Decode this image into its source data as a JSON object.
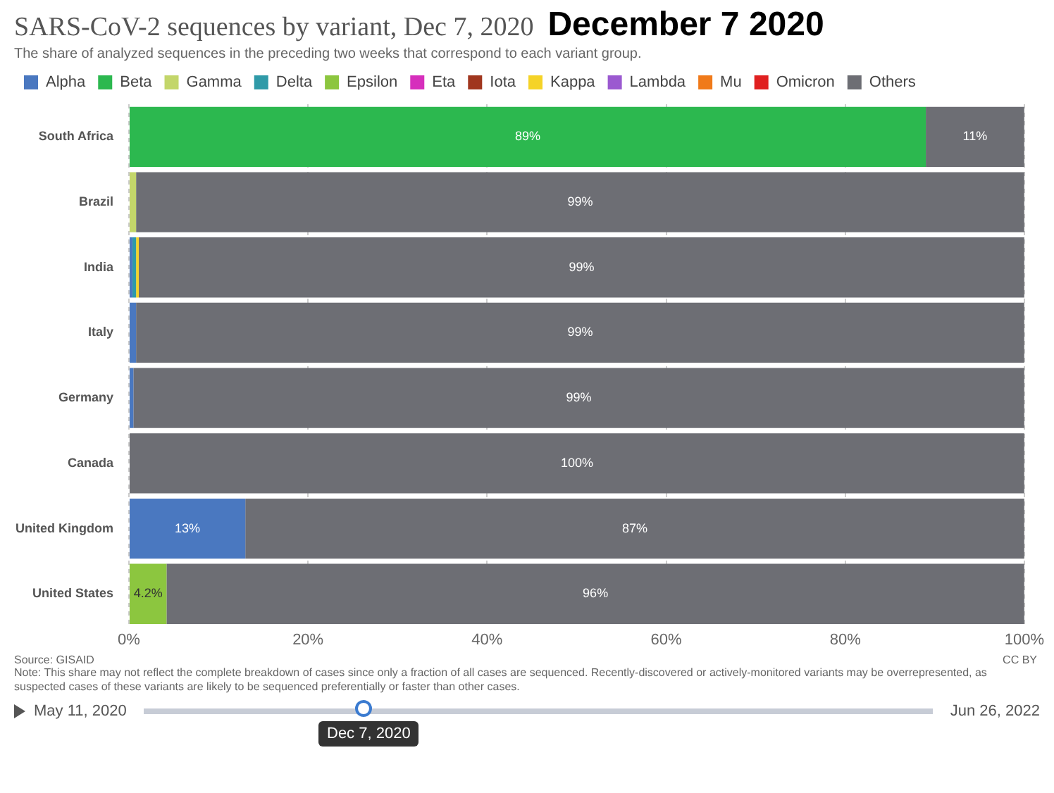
{
  "chart_data": {
    "type": "bar",
    "orientation": "horizontal",
    "stacked": true,
    "title": "SARS-CoV-2 sequences by variant, Dec 7, 2020",
    "subtitle": "The share of analyzed sequences in the preceding two weeks that correspond to each variant group.",
    "categories": [
      "South Africa",
      "Brazil",
      "India",
      "Italy",
      "Germany",
      "Canada",
      "United Kingdom",
      "United States"
    ],
    "series": [
      {
        "name": "Alpha",
        "color": "#4a78c0",
        "values": [
          0,
          0,
          0.4,
          0.8,
          0.5,
          0,
          13,
          0
        ],
        "value_labels": [
          null,
          null,
          null,
          null,
          null,
          null,
          "13%",
          null
        ]
      },
      {
        "name": "Beta",
        "color": "#2cb84f",
        "values": [
          89,
          0,
          0,
          0,
          0,
          0,
          0,
          0
        ],
        "value_labels": [
          "89%",
          null,
          null,
          null,
          null,
          null,
          null,
          null
        ]
      },
      {
        "name": "Gamma",
        "color": "#c3d66a",
        "values": [
          0,
          0.8,
          0,
          0,
          0,
          0,
          0,
          0
        ]
      },
      {
        "name": "Delta",
        "color": "#2f9aa8",
        "values": [
          0,
          0,
          0.4,
          0,
          0,
          0,
          0,
          0
        ]
      },
      {
        "name": "Epsilon",
        "color": "#8cc63f",
        "values": [
          0,
          0,
          0,
          0,
          0,
          0,
          0,
          4.2
        ],
        "value_labels": [
          null,
          null,
          null,
          null,
          null,
          null,
          null,
          "4.2%"
        ]
      },
      {
        "name": "Eta",
        "color": "#d62fbc",
        "values": [
          0,
          0,
          0,
          0,
          0,
          0,
          0,
          0
        ]
      },
      {
        "name": "Iota",
        "color": "#a0361e",
        "values": [
          0,
          0,
          0,
          0,
          0,
          0,
          0,
          0
        ]
      },
      {
        "name": "Kappa",
        "color": "#f5d327",
        "values": [
          0,
          0,
          0.3,
          0,
          0,
          0,
          0,
          0
        ]
      },
      {
        "name": "Lambda",
        "color": "#9b59d0",
        "values": [
          0,
          0,
          0,
          0,
          0,
          0,
          0,
          0
        ]
      },
      {
        "name": "Mu",
        "color": "#f07a1a",
        "values": [
          0,
          0,
          0,
          0,
          0,
          0,
          0,
          0
        ]
      },
      {
        "name": "Omicron",
        "color": "#e02020",
        "values": [
          0,
          0,
          0,
          0,
          0,
          0,
          0,
          0
        ]
      },
      {
        "name": "Others",
        "color": "#6d6e74",
        "values": [
          11,
          99.2,
          98.9,
          99.2,
          99.5,
          100,
          87,
          95.8
        ],
        "value_labels": [
          "11%",
          "99%",
          "99%",
          "99%",
          "99%",
          "100%",
          "87%",
          "96%"
        ]
      }
    ],
    "xlim": [
      0,
      100
    ],
    "xticks": [
      {
        "value": 0,
        "label": "0%"
      },
      {
        "value": 20,
        "label": "20%"
      },
      {
        "value": 40,
        "label": "40%"
      },
      {
        "value": 60,
        "label": "60%"
      },
      {
        "value": 80,
        "label": "80%"
      },
      {
        "value": 100,
        "label": "100%"
      }
    ],
    "grid": "x",
    "legend": "top left",
    "annotations": [
      "December 7 2020",
      "Source: GISAID",
      "Note: This share may not reflect the complete breakdown of cases since only a fraction of all cases are sequenced. Recently-discovered or actively-monitored variants may be overrepresented, as suspected cases of these variants are likely to be sequenced preferentially or faster than other cases.",
      "CC BY",
      "May 11, 2020",
      "Dec 7, 2020",
      "Jun 26, 2022"
    ]
  }
}
